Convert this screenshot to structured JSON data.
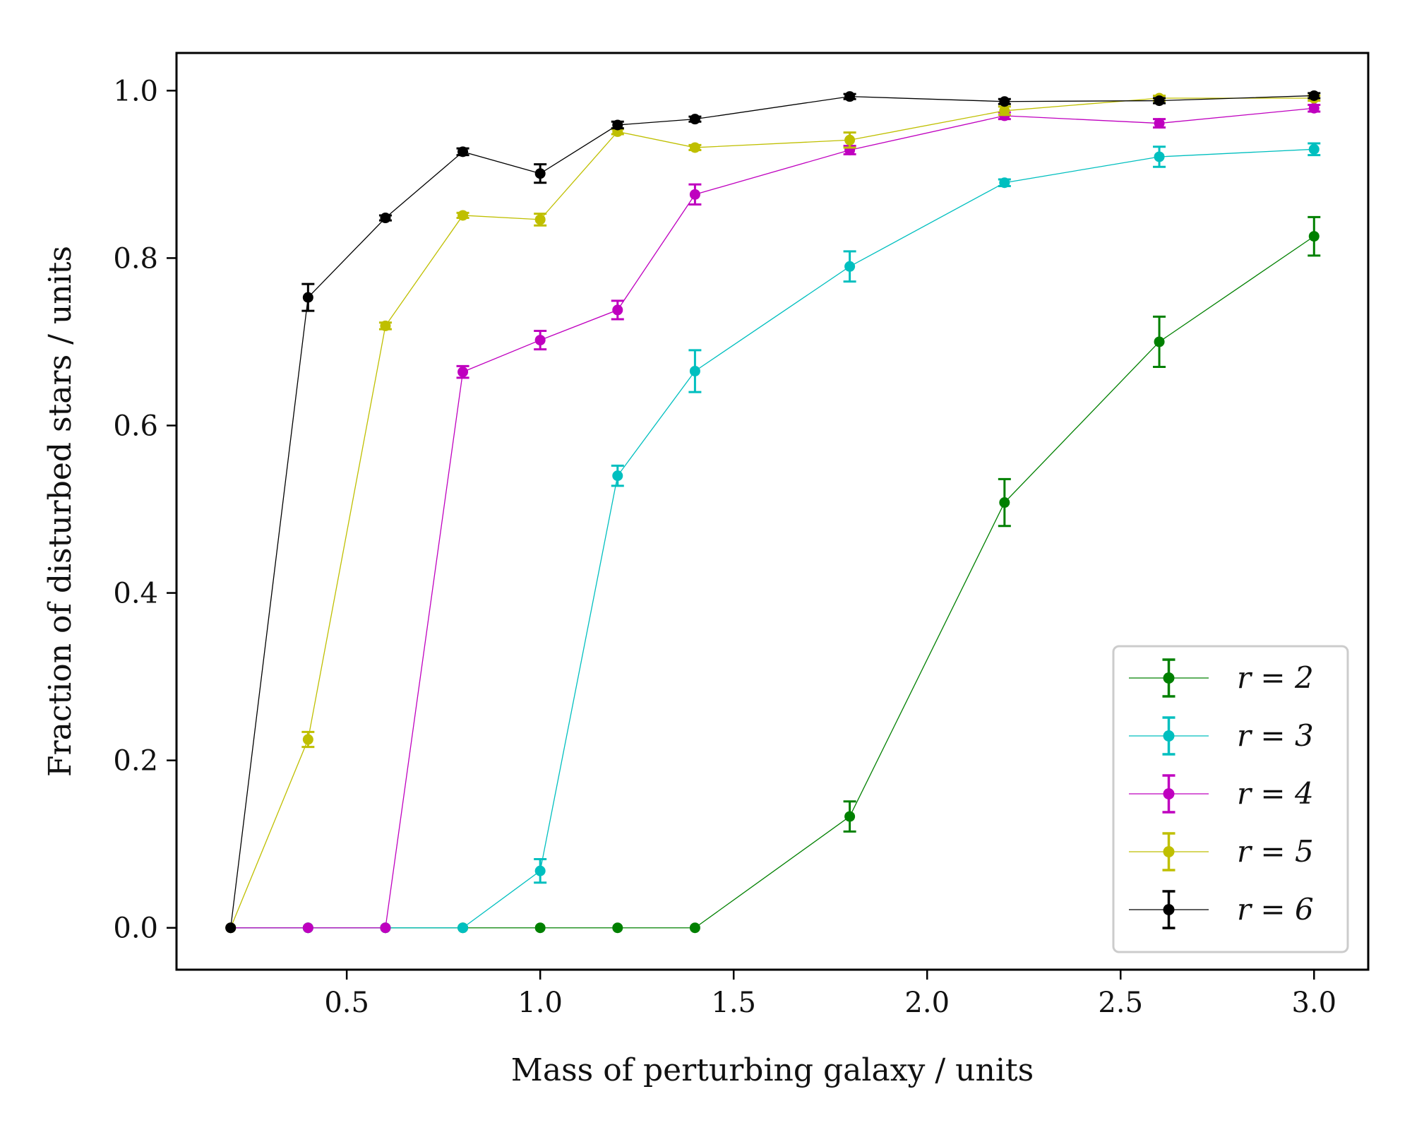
{
  "chart_data": {
    "type": "line",
    "xlabel": "Mass of perturbing galaxy / units",
    "ylabel": "Fraction of disturbed stars / units",
    "xlim": [
      0.06,
      3.14
    ],
    "ylim": [
      -0.05,
      1.045
    ],
    "xticks": [
      0.5,
      1.0,
      1.5,
      2.0,
      2.5,
      3.0
    ],
    "xtick_labels": [
      "0.5",
      "1.0",
      "1.5",
      "2.0",
      "2.5",
      "3.0"
    ],
    "yticks": [
      0.0,
      0.2,
      0.4,
      0.6,
      0.8,
      1.0
    ],
    "ytick_labels": [
      "0.0",
      "0.2",
      "0.4",
      "0.6",
      "0.8",
      "1.0"
    ],
    "legend_position": "lower-right",
    "error_bars": true,
    "series": [
      {
        "name": "r = 2",
        "color": "#008000",
        "x": [
          0.2,
          0.4,
          0.6,
          0.8,
          1.0,
          1.2,
          1.4,
          1.8,
          2.2,
          2.6,
          3.0
        ],
        "y": [
          0.0,
          0.0,
          0.0,
          0.0,
          0.0,
          0.0,
          0.0,
          0.133,
          0.508,
          0.7,
          0.826
        ],
        "yerr": [
          0.0,
          0.0,
          0.0,
          0.0,
          0.0,
          0.0,
          0.0,
          0.018,
          0.028,
          0.03,
          0.023
        ]
      },
      {
        "name": "r = 3",
        "color": "#00bfbf",
        "x": [
          0.2,
          0.4,
          0.6,
          0.8,
          1.0,
          1.2,
          1.4,
          1.8,
          2.2,
          2.6,
          3.0
        ],
        "y": [
          0.0,
          0.0,
          0.0,
          0.0,
          0.068,
          0.54,
          0.665,
          0.79,
          0.89,
          0.921,
          0.93
        ],
        "yerr": [
          0.0,
          0.0,
          0.0,
          0.0,
          0.014,
          0.012,
          0.025,
          0.018,
          0.004,
          0.012,
          0.007
        ]
      },
      {
        "name": "r = 4",
        "color": "#bf00bf",
        "x": [
          0.2,
          0.4,
          0.6,
          0.8,
          1.0,
          1.2,
          1.4,
          1.8,
          2.2,
          2.6,
          3.0
        ],
        "y": [
          0.0,
          0.0,
          0.0,
          0.664,
          0.702,
          0.738,
          0.876,
          0.929,
          0.97,
          0.961,
          0.979
        ],
        "yerr": [
          0.0,
          0.0,
          0.0,
          0.007,
          0.011,
          0.011,
          0.012,
          0.005,
          0.004,
          0.005,
          0.004
        ]
      },
      {
        "name": "r = 5",
        "color": "#bfbf00",
        "x": [
          0.2,
          0.4,
          0.6,
          0.8,
          1.0,
          1.2,
          1.4,
          1.8,
          2.2,
          2.6,
          3.0
        ],
        "y": [
          0.0,
          0.225,
          0.719,
          0.851,
          0.846,
          0.951,
          0.932,
          0.941,
          0.976,
          0.991,
          0.991
        ],
        "yerr": [
          0.0,
          0.009,
          0.004,
          0.003,
          0.007,
          0.003,
          0.003,
          0.009,
          0.005,
          0.003,
          0.003
        ]
      },
      {
        "name": "r = 6",
        "color": "#000000",
        "x": [
          0.2,
          0.4,
          0.6,
          0.8,
          1.0,
          1.2,
          1.4,
          1.8,
          2.2,
          2.6,
          3.0
        ],
        "y": [
          0.0,
          0.753,
          0.848,
          0.927,
          0.901,
          0.959,
          0.966,
          0.993,
          0.987,
          0.988,
          0.994
        ],
        "yerr": [
          0.0,
          0.016,
          0.003,
          0.004,
          0.011,
          0.004,
          0.003,
          0.003,
          0.003,
          0.003,
          0.003
        ]
      }
    ]
  }
}
